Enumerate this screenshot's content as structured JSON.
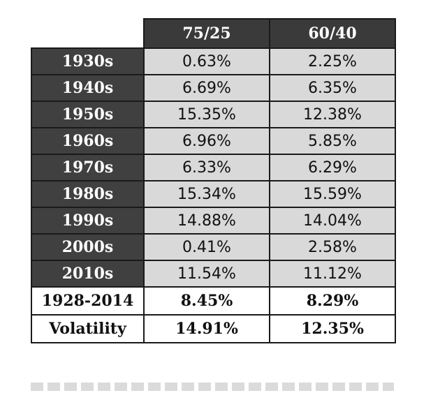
{
  "chart_data": {
    "type": "table",
    "columns": [
      "75/25",
      "60/40"
    ],
    "rows": [
      {
        "label": "1930s",
        "values": [
          "0.63%",
          "2.25%"
        ]
      },
      {
        "label": "1940s",
        "values": [
          "6.69%",
          "6.35%"
        ]
      },
      {
        "label": "1950s",
        "values": [
          "15.35%",
          "12.38%"
        ]
      },
      {
        "label": "1960s",
        "values": [
          "6.96%",
          "5.85%"
        ]
      },
      {
        "label": "1970s",
        "values": [
          "6.33%",
          "6.29%"
        ]
      },
      {
        "label": "1980s",
        "values": [
          "15.34%",
          "15.59%"
        ]
      },
      {
        "label": "1990s",
        "values": [
          "14.88%",
          "14.04%"
        ]
      },
      {
        "label": "2000s",
        "values": [
          "0.41%",
          "2.58%"
        ]
      },
      {
        "label": "2010s",
        "values": [
          "11.54%",
          "11.12%"
        ]
      }
    ],
    "summary": [
      {
        "label": "1928-2014",
        "values": [
          "8.45%",
          "8.29%"
        ]
      },
      {
        "label": "Volatility",
        "values": [
          "14.91%",
          "12.35%"
        ]
      }
    ]
  },
  "colors": {
    "header_bg": "#3a3a3a",
    "row_label_bg": "#404040",
    "value_bg": "#d9d9d9",
    "summary_bg": "#ffffff"
  }
}
